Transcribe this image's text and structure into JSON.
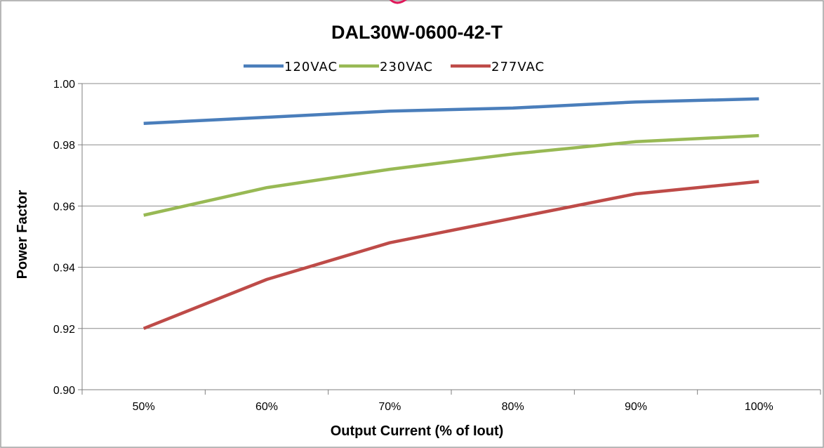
{
  "chart_data": {
    "type": "line",
    "title": "DAL30W-0600-42-T",
    "xlabel": "Output Current (% of Iout)",
    "ylabel": "Power Factor",
    "categories": [
      "50%",
      "60%",
      "70%",
      "80%",
      "90%",
      "100%"
    ],
    "ylim": [
      0.9,
      1.0
    ],
    "yticks": [
      0.9,
      0.92,
      0.94,
      0.96,
      0.98,
      1.0
    ],
    "ytick_labels": [
      "0.90",
      "0.92",
      "0.94",
      "0.96",
      "0.98",
      "1.00"
    ],
    "grid": true,
    "legend_position": "top",
    "series": [
      {
        "name": "120VAC",
        "color": "#4a7ebb",
        "values": [
          0.987,
          0.989,
          0.991,
          0.992,
          0.994,
          0.995
        ]
      },
      {
        "name": "230VAC",
        "color": "#98b954",
        "values": [
          0.957,
          0.966,
          0.972,
          0.977,
          0.981,
          0.983
        ]
      },
      {
        "name": "277VAC",
        "color": "#be4b48",
        "values": [
          0.92,
          0.936,
          0.948,
          0.956,
          0.964,
          0.968
        ]
      }
    ]
  },
  "colors": {
    "frame_border": "#a0a0a0",
    "gridline": "#8c8c8c",
    "axis": "#7f7f7f",
    "header_fragment": "#e0185a"
  }
}
